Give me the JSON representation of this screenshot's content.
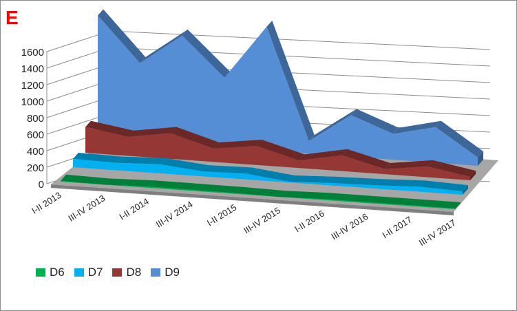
{
  "panel_label": "E",
  "chart_data": {
    "type": "area",
    "view": "3d",
    "categories": [
      "I-II 2013",
      "III-IV 2013",
      "I-II 2014",
      "III-IV 2014",
      "I-II 2015",
      "III-IV 2015",
      "I-II 2016",
      "III-IV 2016",
      "I-II 2017",
      "III-IV 2017"
    ],
    "series": [
      {
        "name": "D6",
        "color": "#00b050",
        "values": [
          10,
          0,
          15,
          12,
          10,
          0,
          12,
          10,
          10,
          8
        ]
      },
      {
        "name": "D7",
        "color": "#00b0f0",
        "values": [
          100,
          90,
          110,
          60,
          70,
          10,
          30,
          40,
          60,
          40
        ]
      },
      {
        "name": "D8",
        "color": "#953735",
        "values": [
          310,
          230,
          310,
          160,
          230,
          90,
          190,
          60,
          130,
          40
        ]
      },
      {
        "name": "D9",
        "color": "#558ed5",
        "values": [
          1480,
          940,
          1310,
          840,
          1490,
          150,
          500,
          310,
          430,
          100
        ]
      }
    ],
    "y_ticks": [
      "0",
      "200",
      "400",
      "600",
      "800",
      "1000",
      "1200",
      "1400",
      "1600"
    ],
    "ylim": [
      0,
      1600
    ],
    "grid": true,
    "legend_position": "bottom-left"
  }
}
